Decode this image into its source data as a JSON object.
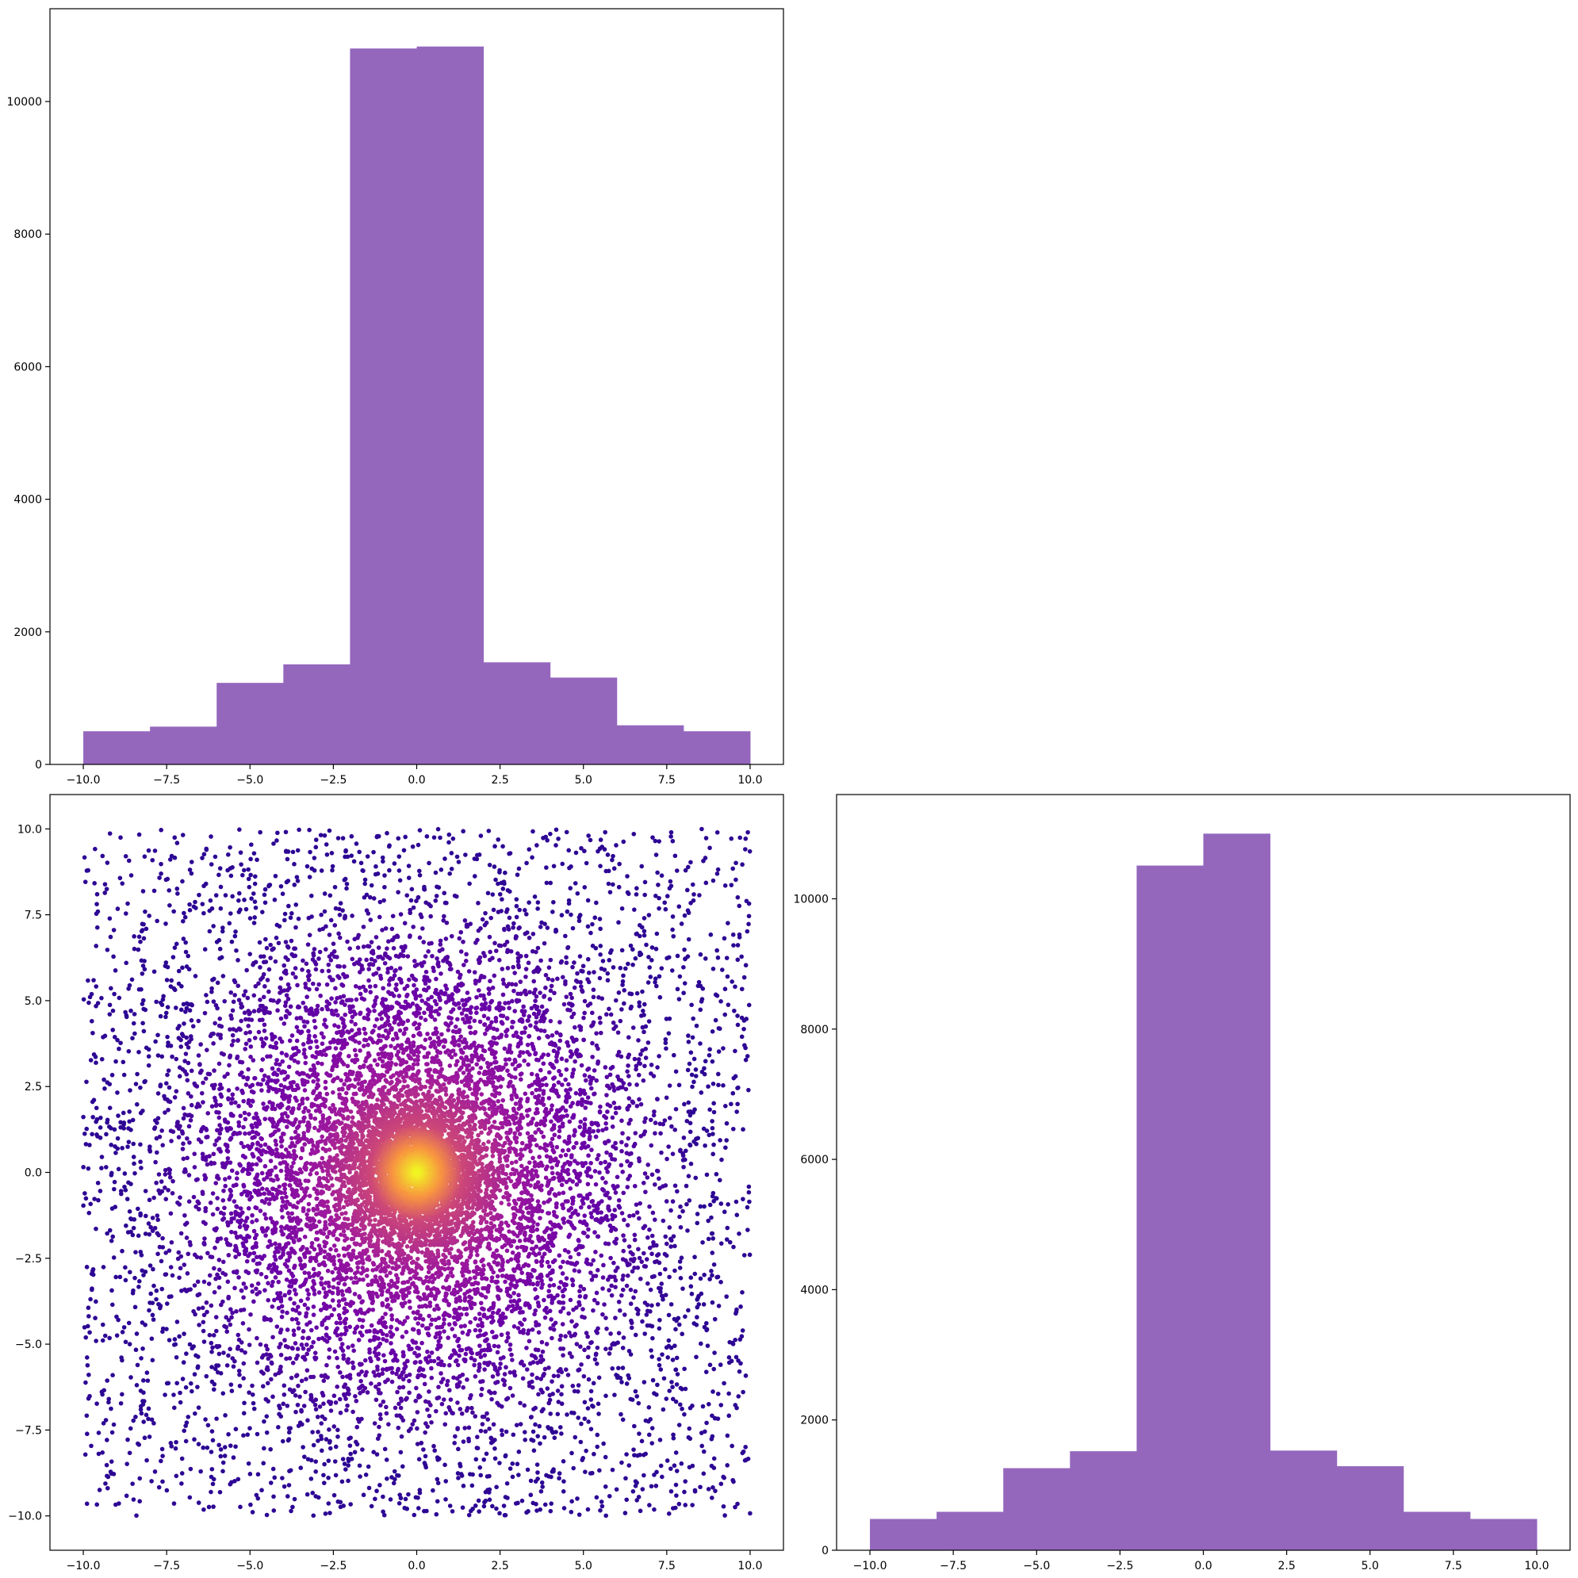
{
  "colors": {
    "hist_bar": "#9467bd",
    "scatter_outer": "#2a0593",
    "scatter_mid": "#8b0aa5",
    "scatter_inner": "#cc4778",
    "center_core": "#f0f921"
  },
  "chart_data": [
    {
      "id": "top-left-histogram",
      "type": "bar",
      "title": "",
      "xlabel": "",
      "ylabel": "",
      "bin_edges": [
        -10,
        -8,
        -6,
        -4,
        -2,
        0,
        2,
        4,
        6,
        8,
        10
      ],
      "values": [
        500,
        570,
        1230,
        1510,
        10800,
        10830,
        1540,
        1310,
        590,
        500
      ],
      "xlim": [
        -11,
        11
      ],
      "ylim": [
        0,
        11400
      ],
      "xticks": [
        -10,
        -7.5,
        -5,
        -2.5,
        0,
        2.5,
        5,
        7.5,
        10
      ],
      "xtick_labels": [
        "−10.0",
        "−7.5",
        "−5.0",
        "−2.5",
        "0.0",
        "2.5",
        "5.0",
        "7.5",
        "10.0"
      ],
      "yticks": [
        0,
        2000,
        4000,
        6000,
        8000,
        10000
      ],
      "ytick_labels": [
        "0",
        "2000",
        "4000",
        "6000",
        "8000",
        "10000"
      ],
      "grid": false
    },
    {
      "id": "bottom-left-scatter",
      "type": "scatter",
      "title": "",
      "xlabel": "",
      "ylabel": "",
      "distribution": "uniform square background plus gaussian cluster; color by distance from center",
      "x_range": [
        -10,
        10
      ],
      "y_range": [
        -10,
        10
      ],
      "xlim": [
        -11,
        11
      ],
      "ylim": [
        -11,
        11
      ],
      "xticks": [
        -10,
        -7.5,
        -5,
        -2.5,
        0,
        2.5,
        5,
        7.5,
        10
      ],
      "xtick_labels": [
        "−10.0",
        "−7.5",
        "−5.0",
        "−2.5",
        "0.0",
        "2.5",
        "5.0",
        "7.5",
        "10.0"
      ],
      "yticks": [
        -10,
        -7.5,
        -5,
        -2.5,
        0,
        2.5,
        5,
        7.5,
        10
      ],
      "ytick_labels": [
        "−10.0",
        "−7.5",
        "−5.0",
        "−2.5",
        "0.0",
        "2.5",
        "5.0",
        "7.5",
        "10.0"
      ],
      "grid": false
    },
    {
      "id": "bottom-right-histogram",
      "type": "bar",
      "title": "",
      "xlabel": "",
      "ylabel": "",
      "bin_edges": [
        -10,
        -8,
        -6,
        -4,
        -2,
        0,
        2,
        4,
        6,
        8,
        10
      ],
      "values": [
        480,
        590,
        1260,
        1520,
        10510,
        11000,
        1530,
        1290,
        590,
        480
      ],
      "xlim": [
        -11,
        11
      ],
      "ylim": [
        0,
        11600
      ],
      "xticks": [
        -10,
        -7.5,
        -5,
        -2.5,
        0,
        2.5,
        5,
        7.5,
        10
      ],
      "xtick_labels": [
        "−10.0",
        "−7.5",
        "−5.0",
        "−2.5",
        "0.0",
        "2.5",
        "5.0",
        "7.5",
        "10.0"
      ],
      "yticks": [
        0,
        2000,
        4000,
        6000,
        8000,
        10000
      ],
      "ytick_labels": [
        "0",
        "2000",
        "4000",
        "6000",
        "8000",
        "10000"
      ],
      "grid": false
    }
  ]
}
